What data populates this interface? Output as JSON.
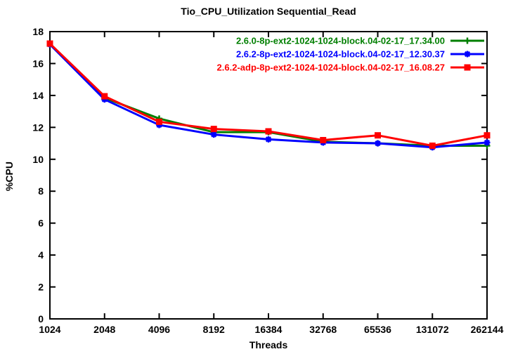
{
  "chart_data": {
    "type": "line",
    "title": "Tio_CPU_Utilization Sequential_Read",
    "xlabel": "Threads",
    "ylabel": "%CPU",
    "x_scale": "log2",
    "categories": [
      "1024",
      "2048",
      "4096",
      "8192",
      "16384",
      "32768",
      "65536",
      "131072",
      "262144"
    ],
    "ylim": [
      0,
      18
    ],
    "ytick_step": 2,
    "grid": false,
    "legend_position": "top-right-inside",
    "background_color": "#ffffff",
    "axis_color": "#000000",
    "series": [
      {
        "name": "2.6.0-8p-ext2-1024-1024-block.04-02-17_17.34.00",
        "color": "#007f00",
        "marker": "plus",
        "values": [
          17.2,
          13.85,
          12.55,
          11.7,
          11.7,
          11.1,
          11.0,
          10.85,
          10.85
        ]
      },
      {
        "name": "2.6.2-8p-ext2-1024-1024-block.04-02-17_12.30.37",
        "color": "#0000ff",
        "marker": "star",
        "values": [
          17.2,
          13.75,
          12.15,
          11.55,
          11.25,
          11.05,
          11.0,
          10.75,
          11.05
        ]
      },
      {
        "name": "2.6.2-adp-8p-ext2-1024-1024-block.04-02-17_16.08.27",
        "color": "#ff0000",
        "marker": "filled-square",
        "values": [
          17.25,
          13.95,
          12.35,
          11.9,
          11.75,
          11.2,
          11.5,
          10.85,
          11.5
        ]
      }
    ]
  }
}
